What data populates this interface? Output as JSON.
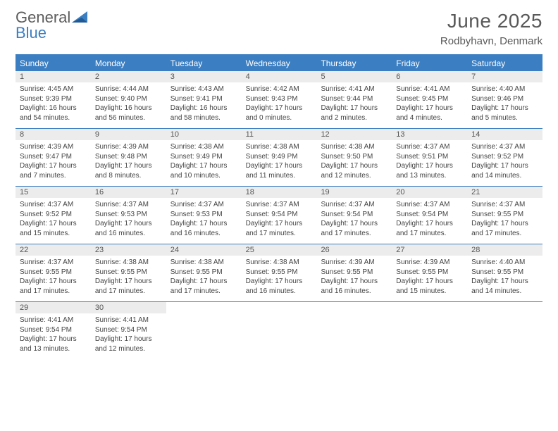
{
  "logo": {
    "general": "General",
    "blue": "Blue"
  },
  "title": "June 2025",
  "subtitle": "Rodbyhavn, Denmark",
  "colors": {
    "brand_blue": "#3b7ec1",
    "header_text": "#595959",
    "daynum_bg": "#ececec",
    "body_text": "#444444"
  },
  "days_of_week": [
    "Sunday",
    "Monday",
    "Tuesday",
    "Wednesday",
    "Thursday",
    "Friday",
    "Saturday"
  ],
  "weeks": [
    [
      {
        "n": "1",
        "sr": "4:45 AM",
        "ss": "9:39 PM",
        "d1": "16 hours",
        "d2": "and 54 minutes."
      },
      {
        "n": "2",
        "sr": "4:44 AM",
        "ss": "9:40 PM",
        "d1": "16 hours",
        "d2": "and 56 minutes."
      },
      {
        "n": "3",
        "sr": "4:43 AM",
        "ss": "9:41 PM",
        "d1": "16 hours",
        "d2": "and 58 minutes."
      },
      {
        "n": "4",
        "sr": "4:42 AM",
        "ss": "9:43 PM",
        "d1": "17 hours",
        "d2": "and 0 minutes."
      },
      {
        "n": "5",
        "sr": "4:41 AM",
        "ss": "9:44 PM",
        "d1": "17 hours",
        "d2": "and 2 minutes."
      },
      {
        "n": "6",
        "sr": "4:41 AM",
        "ss": "9:45 PM",
        "d1": "17 hours",
        "d2": "and 4 minutes."
      },
      {
        "n": "7",
        "sr": "4:40 AM",
        "ss": "9:46 PM",
        "d1": "17 hours",
        "d2": "and 5 minutes."
      }
    ],
    [
      {
        "n": "8",
        "sr": "4:39 AM",
        "ss": "9:47 PM",
        "d1": "17 hours",
        "d2": "and 7 minutes."
      },
      {
        "n": "9",
        "sr": "4:39 AM",
        "ss": "9:48 PM",
        "d1": "17 hours",
        "d2": "and 8 minutes."
      },
      {
        "n": "10",
        "sr": "4:38 AM",
        "ss": "9:49 PM",
        "d1": "17 hours",
        "d2": "and 10 minutes."
      },
      {
        "n": "11",
        "sr": "4:38 AM",
        "ss": "9:49 PM",
        "d1": "17 hours",
        "d2": "and 11 minutes."
      },
      {
        "n": "12",
        "sr": "4:38 AM",
        "ss": "9:50 PM",
        "d1": "17 hours",
        "d2": "and 12 minutes."
      },
      {
        "n": "13",
        "sr": "4:37 AM",
        "ss": "9:51 PM",
        "d1": "17 hours",
        "d2": "and 13 minutes."
      },
      {
        "n": "14",
        "sr": "4:37 AM",
        "ss": "9:52 PM",
        "d1": "17 hours",
        "d2": "and 14 minutes."
      }
    ],
    [
      {
        "n": "15",
        "sr": "4:37 AM",
        "ss": "9:52 PM",
        "d1": "17 hours",
        "d2": "and 15 minutes."
      },
      {
        "n": "16",
        "sr": "4:37 AM",
        "ss": "9:53 PM",
        "d1": "17 hours",
        "d2": "and 16 minutes."
      },
      {
        "n": "17",
        "sr": "4:37 AM",
        "ss": "9:53 PM",
        "d1": "17 hours",
        "d2": "and 16 minutes."
      },
      {
        "n": "18",
        "sr": "4:37 AM",
        "ss": "9:54 PM",
        "d1": "17 hours",
        "d2": "and 17 minutes."
      },
      {
        "n": "19",
        "sr": "4:37 AM",
        "ss": "9:54 PM",
        "d1": "17 hours",
        "d2": "and 17 minutes."
      },
      {
        "n": "20",
        "sr": "4:37 AM",
        "ss": "9:54 PM",
        "d1": "17 hours",
        "d2": "and 17 minutes."
      },
      {
        "n": "21",
        "sr": "4:37 AM",
        "ss": "9:55 PM",
        "d1": "17 hours",
        "d2": "and 17 minutes."
      }
    ],
    [
      {
        "n": "22",
        "sr": "4:37 AM",
        "ss": "9:55 PM",
        "d1": "17 hours",
        "d2": "and 17 minutes."
      },
      {
        "n": "23",
        "sr": "4:38 AM",
        "ss": "9:55 PM",
        "d1": "17 hours",
        "d2": "and 17 minutes."
      },
      {
        "n": "24",
        "sr": "4:38 AM",
        "ss": "9:55 PM",
        "d1": "17 hours",
        "d2": "and 17 minutes."
      },
      {
        "n": "25",
        "sr": "4:38 AM",
        "ss": "9:55 PM",
        "d1": "17 hours",
        "d2": "and 16 minutes."
      },
      {
        "n": "26",
        "sr": "4:39 AM",
        "ss": "9:55 PM",
        "d1": "17 hours",
        "d2": "and 16 minutes."
      },
      {
        "n": "27",
        "sr": "4:39 AM",
        "ss": "9:55 PM",
        "d1": "17 hours",
        "d2": "and 15 minutes."
      },
      {
        "n": "28",
        "sr": "4:40 AM",
        "ss": "9:55 PM",
        "d1": "17 hours",
        "d2": "and 14 minutes."
      }
    ],
    [
      {
        "n": "29",
        "sr": "4:41 AM",
        "ss": "9:54 PM",
        "d1": "17 hours",
        "d2": "and 13 minutes."
      },
      {
        "n": "30",
        "sr": "4:41 AM",
        "ss": "9:54 PM",
        "d1": "17 hours",
        "d2": "and 12 minutes."
      },
      null,
      null,
      null,
      null,
      null
    ]
  ],
  "labels": {
    "sunrise": "Sunrise:",
    "sunset": "Sunset:",
    "daylight": "Daylight:"
  }
}
